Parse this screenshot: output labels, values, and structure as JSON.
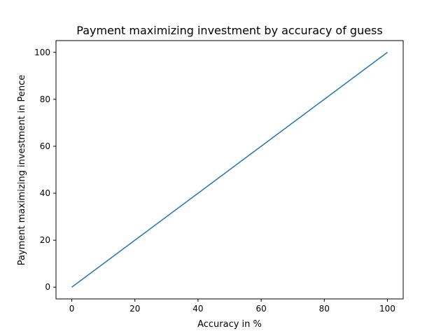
{
  "chart_data": {
    "type": "line",
    "title": "Payment maximizing investment by accuracy of guess",
    "xlabel": "Accuracy in %",
    "ylabel": "Payment maximizing investment in Pence",
    "xlim": [
      -5,
      105
    ],
    "ylim": [
      -5,
      105
    ],
    "xticks": [
      0,
      20,
      40,
      60,
      80,
      100
    ],
    "yticks": [
      0,
      20,
      40,
      60,
      80,
      100
    ],
    "grid": false,
    "series": [
      {
        "color": "#1f77b4",
        "x": [
          0,
          100
        ],
        "y": [
          0,
          100
        ]
      }
    ]
  }
}
